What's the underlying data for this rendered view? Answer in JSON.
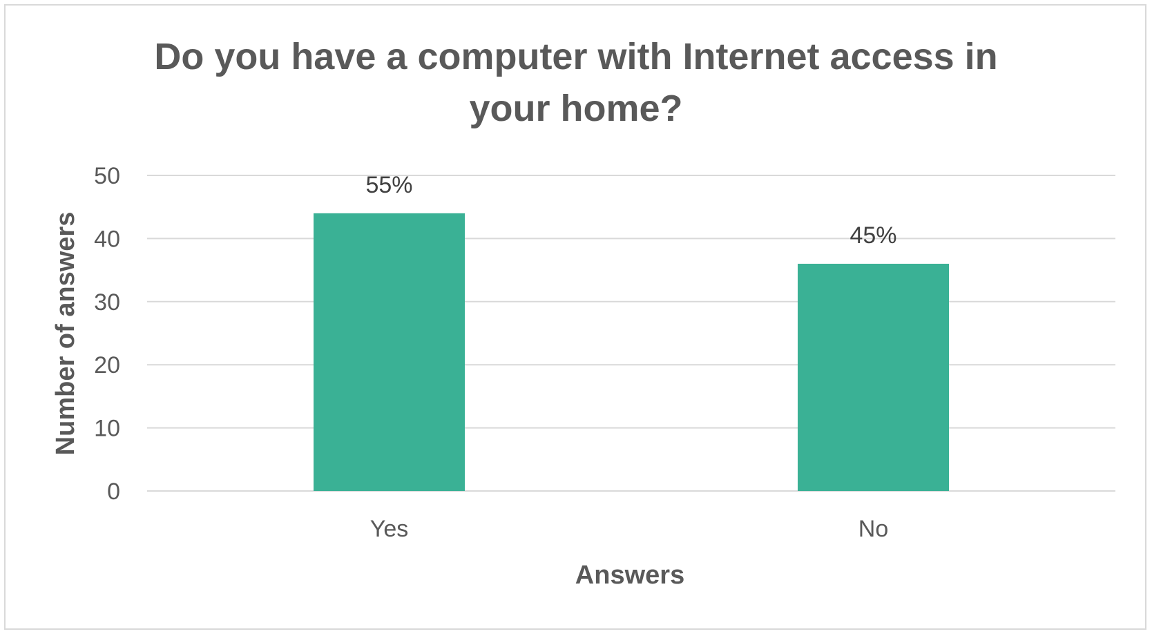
{
  "chart_data": {
    "type": "bar",
    "title_lines": [
      "Do you have a computer with Internet access in",
      "your home?"
    ],
    "xlabel": "Answers",
    "ylabel": "Number of answers",
    "categories": [
      "Yes",
      "No"
    ],
    "values": [
      44,
      36
    ],
    "data_labels": [
      "55%",
      "45%"
    ],
    "ylim": [
      0,
      50
    ],
    "yticks": [
      "0",
      "10",
      "20",
      "30",
      "40",
      "50"
    ],
    "grid": true,
    "legend": "none",
    "colors": {
      "bar": "#3ab195",
      "grid": "#d9d9d9",
      "text": "#595959"
    }
  }
}
